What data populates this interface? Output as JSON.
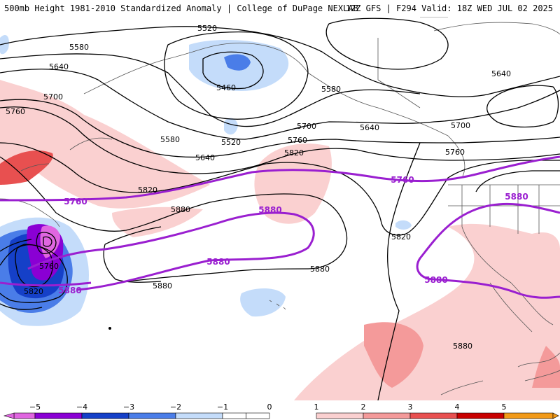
{
  "header": {
    "left": "500mb Height 1981-2010 Standardized Anomaly | College of DuPage NEXLAB",
    "right": "12Z GFS | F294 Valid: 18Z WED JUL 02 2025"
  },
  "contour_labels": {
    "l5520a": "5520",
    "l5580a": "5580",
    "l5640a": "5640",
    "l5700a": "5700",
    "l5760a": "5760",
    "l5460": "5460",
    "l5520b": "5520",
    "l5580b": "5580",
    "l5640b": "5640",
    "l5580c": "5580",
    "l5700b": "5700",
    "l5640c": "5640",
    "l5760b": "5760",
    "l5820a": "5820",
    "l5640d": "5640",
    "l5700c": "5700",
    "l5760c": "5760",
    "l5820b": "5820",
    "l5880a": "5880",
    "l5880b": "5880",
    "l5820c": "5820",
    "l5880c": "5880",
    "l5760low": "5760",
    "l5820low": "5820",
    "l5880d": "5880"
  },
  "purple_labels": {
    "p5760a": "5760",
    "p5760b": "5760",
    "p5880a": "5880",
    "p5880b": "5880",
    "p5880c": "5880",
    "p5880d": "5880"
  },
  "colors": {
    "m5": "#e066e0",
    "m4": "#8a00d4",
    "m3": "#1540c8",
    "m2": "#4a7de8",
    "m1": "#c4dcfa",
    "z": "#ffffff",
    "p1": "#fad0d0",
    "p2": "#f49a9a",
    "p3": "#e85050",
    "p4": "#c80000",
    "p5": "#f29a18",
    "purple": "#9a1fd0"
  },
  "colorbar": {
    "ticks": [
      "−5",
      "−4",
      "−3",
      "−2",
      "−1",
      "0",
      "1",
      "2",
      "3",
      "4",
      "5"
    ]
  }
}
